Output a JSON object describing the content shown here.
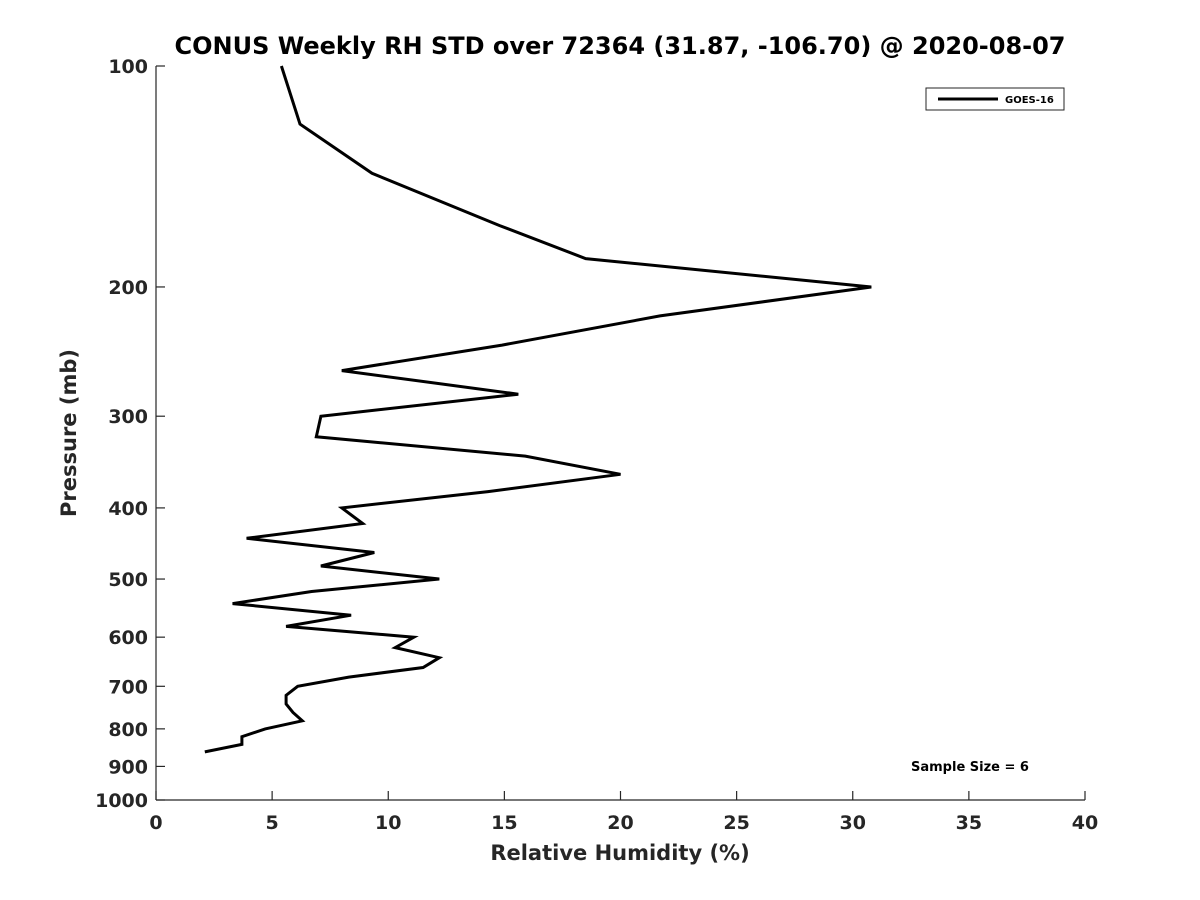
{
  "chart_data": {
    "type": "line",
    "title": "CONUS Weekly RH STD over 72364 (31.87, -106.70) @ 2020-08-07",
    "xlabel": "Relative Humidity (%)",
    "ylabel": "Pressure (mb)",
    "xlim": [
      0,
      40
    ],
    "ylim": [
      100,
      1000
    ],
    "y_scale": "log",
    "y_reversed": true,
    "x_ticks": [
      "0",
      "5",
      "10",
      "15",
      "20",
      "25",
      "30",
      "35",
      "40"
    ],
    "x_tick_values": [
      0,
      5,
      10,
      15,
      20,
      25,
      30,
      35,
      40
    ],
    "y_ticks": [
      "100",
      "200",
      "300",
      "400",
      "500",
      "600",
      "700",
      "800",
      "900",
      "1000"
    ],
    "y_tick_values": [
      100,
      200,
      300,
      400,
      500,
      600,
      700,
      800,
      900,
      1000
    ],
    "grid": false,
    "legend_position": "top-right",
    "series": [
      {
        "name": "GOES-16",
        "color": "#000000",
        "points": [
          {
            "x": 5.4,
            "p": 100
          },
          {
            "x": 6.2,
            "p": 120
          },
          {
            "x": 9.3,
            "p": 140
          },
          {
            "x": 14.8,
            "p": 165
          },
          {
            "x": 18.5,
            "p": 183
          },
          {
            "x": 30.8,
            "p": 200
          },
          {
            "x": 21.7,
            "p": 219
          },
          {
            "x": 14.9,
            "p": 240
          },
          {
            "x": 8.0,
            "p": 260
          },
          {
            "x": 15.6,
            "p": 280
          },
          {
            "x": 7.1,
            "p": 300
          },
          {
            "x": 6.9,
            "p": 320
          },
          {
            "x": 15.9,
            "p": 340
          },
          {
            "x": 20.0,
            "p": 360
          },
          {
            "x": 14.3,
            "p": 380
          },
          {
            "x": 8.0,
            "p": 400
          },
          {
            "x": 8.9,
            "p": 420
          },
          {
            "x": 3.9,
            "p": 440
          },
          {
            "x": 9.4,
            "p": 460
          },
          {
            "x": 7.1,
            "p": 480
          },
          {
            "x": 12.2,
            "p": 500
          },
          {
            "x": 6.7,
            "p": 520
          },
          {
            "x": 3.3,
            "p": 540
          },
          {
            "x": 8.4,
            "p": 560
          },
          {
            "x": 5.6,
            "p": 580
          },
          {
            "x": 11.1,
            "p": 600
          },
          {
            "x": 10.3,
            "p": 620
          },
          {
            "x": 12.2,
            "p": 640
          },
          {
            "x": 11.5,
            "p": 660
          },
          {
            "x": 8.3,
            "p": 680
          },
          {
            "x": 6.1,
            "p": 700
          },
          {
            "x": 5.6,
            "p": 720
          },
          {
            "x": 5.6,
            "p": 740
          },
          {
            "x": 5.9,
            "p": 760
          },
          {
            "x": 6.3,
            "p": 780
          },
          {
            "x": 4.7,
            "p": 800
          },
          {
            "x": 3.7,
            "p": 820
          },
          {
            "x": 3.7,
            "p": 840
          },
          {
            "x": 2.1,
            "p": 860
          }
        ]
      }
    ],
    "annotation": "Sample Size = 6"
  }
}
